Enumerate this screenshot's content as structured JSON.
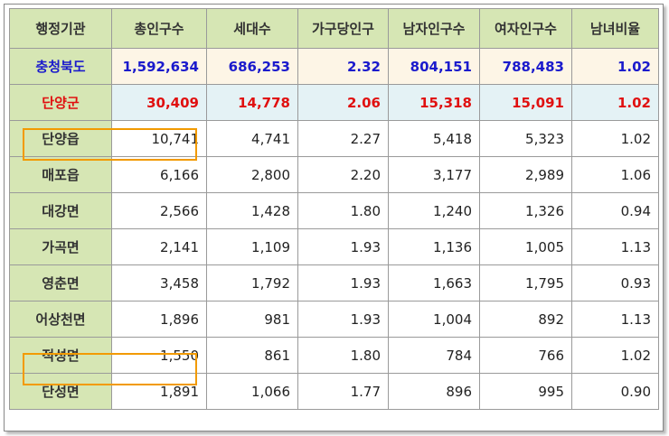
{
  "headers": [
    "행정기관",
    "총인구수",
    "세대수",
    "가구당인구",
    "남자인구수",
    "여자인구수",
    "남녀비율"
  ],
  "rows": [
    {
      "name": "충청북도",
      "total": "1,592,634",
      "households": "686,253",
      "per_household": "2.32",
      "male": "804,151",
      "female": "788,483",
      "ratio": "1.02"
    },
    {
      "name": "단양군",
      "total": "30,409",
      "households": "14,778",
      "per_household": "2.06",
      "male": "15,318",
      "female": "15,091",
      "ratio": "1.02"
    },
    {
      "name": "단양읍",
      "total": "10,741",
      "households": "4,741",
      "per_household": "2.27",
      "male": "5,418",
      "female": "5,323",
      "ratio": "1.02"
    },
    {
      "name": "매포읍",
      "total": "6,166",
      "households": "2,800",
      "per_household": "2.20",
      "male": "3,177",
      "female": "2,989",
      "ratio": "1.06"
    },
    {
      "name": "대강면",
      "total": "2,566",
      "households": "1,428",
      "per_household": "1.80",
      "male": "1,240",
      "female": "1,326",
      "ratio": "0.94"
    },
    {
      "name": "가곡면",
      "total": "2,141",
      "households": "1,109",
      "per_household": "1.93",
      "male": "1,136",
      "female": "1,005",
      "ratio": "1.13"
    },
    {
      "name": "영춘면",
      "total": "3,458",
      "households": "1,792",
      "per_household": "1.93",
      "male": "1,663",
      "female": "1,795",
      "ratio": "0.93"
    },
    {
      "name": "어상천면",
      "total": "1,896",
      "households": "981",
      "per_household": "1.93",
      "male": "1,004",
      "female": "892",
      "ratio": "1.13"
    },
    {
      "name": "적성면",
      "total": "1,550",
      "households": "861",
      "per_household": "1.80",
      "male": "784",
      "female": "766",
      "ratio": "1.02"
    },
    {
      "name": "단성면",
      "total": "1,891",
      "households": "1,066",
      "per_household": "1.77",
      "male": "896",
      "female": "995",
      "ratio": "0.90"
    }
  ],
  "colors": {
    "header_bg": "#d6e6b4",
    "province_text": "#1a1acc",
    "county_text": "#e01010",
    "highlight_border": "#f29a00"
  }
}
